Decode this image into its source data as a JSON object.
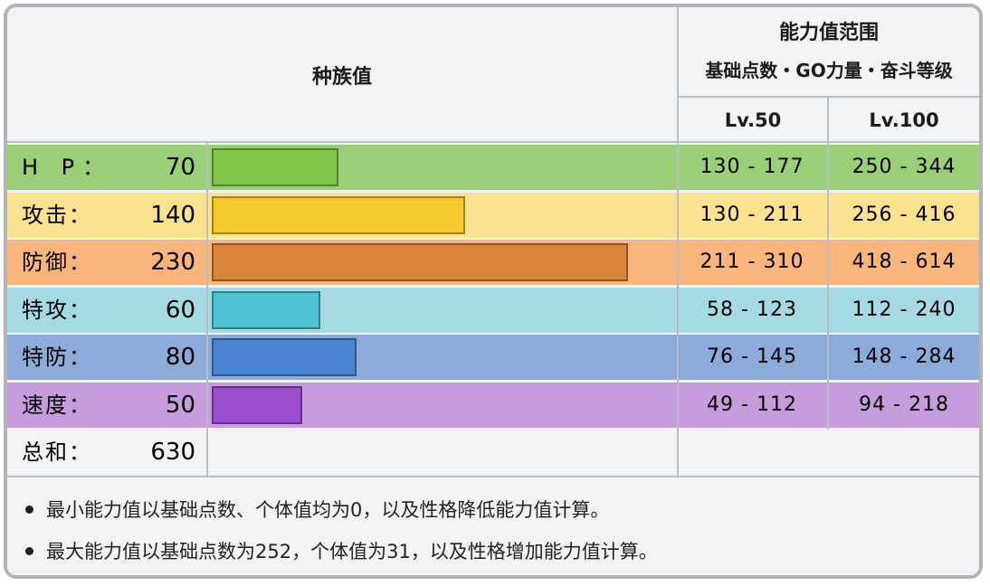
{
  "header": {
    "base_stats": "种族值",
    "range_title": "能力值范围",
    "range_subtitle": "基础点数・GO力量・奋斗等级",
    "lv50": "Lv.50",
    "lv100": "Lv.100"
  },
  "max_base": 255,
  "stats": [
    {
      "label": "H P：",
      "value": "70",
      "num": 70,
      "color": "#7fc64a",
      "row_bg": "#9bcf77",
      "lv50": "130 - 177",
      "lv100": "250 - 344"
    },
    {
      "label": "攻击：",
      "value": "140",
      "num": 140,
      "color": "#f6c92f",
      "row_bg": "#fbe291",
      "lv50": "130 - 211",
      "lv100": "256 - 416"
    },
    {
      "label": "防御：",
      "value": "230",
      "num": 230,
      "color": "#d9853a",
      "row_bg": "#f9b57c",
      "lv50": "211 - 310",
      "lv100": "418 - 614"
    },
    {
      "label": "特攻：",
      "value": "60",
      "num": 60,
      "color": "#4fc2d4",
      "row_bg": "#a6dae2",
      "lv50": "58 - 123",
      "lv100": "112 - 240"
    },
    {
      "label": "特防：",
      "value": "80",
      "num": 80,
      "color": "#4a84d3",
      "row_bg": "#8babd8",
      "lv50": "76 - 145",
      "lv100": "148 - 284"
    },
    {
      "label": "速度：",
      "value": "50",
      "num": 50,
      "color": "#9a4fd1",
      "row_bg": "#c69cdc",
      "lv50": "49 - 112",
      "lv100": "94 - 218"
    }
  ],
  "total": {
    "label": "总和：",
    "value": "630"
  },
  "notes": [
    "最小能力值以基础点数、个体值均为0，以及性格降低能力值计算。",
    "最大能力值以基础点数为252，个体值为31，以及性格增加能力值计算。"
  ]
}
